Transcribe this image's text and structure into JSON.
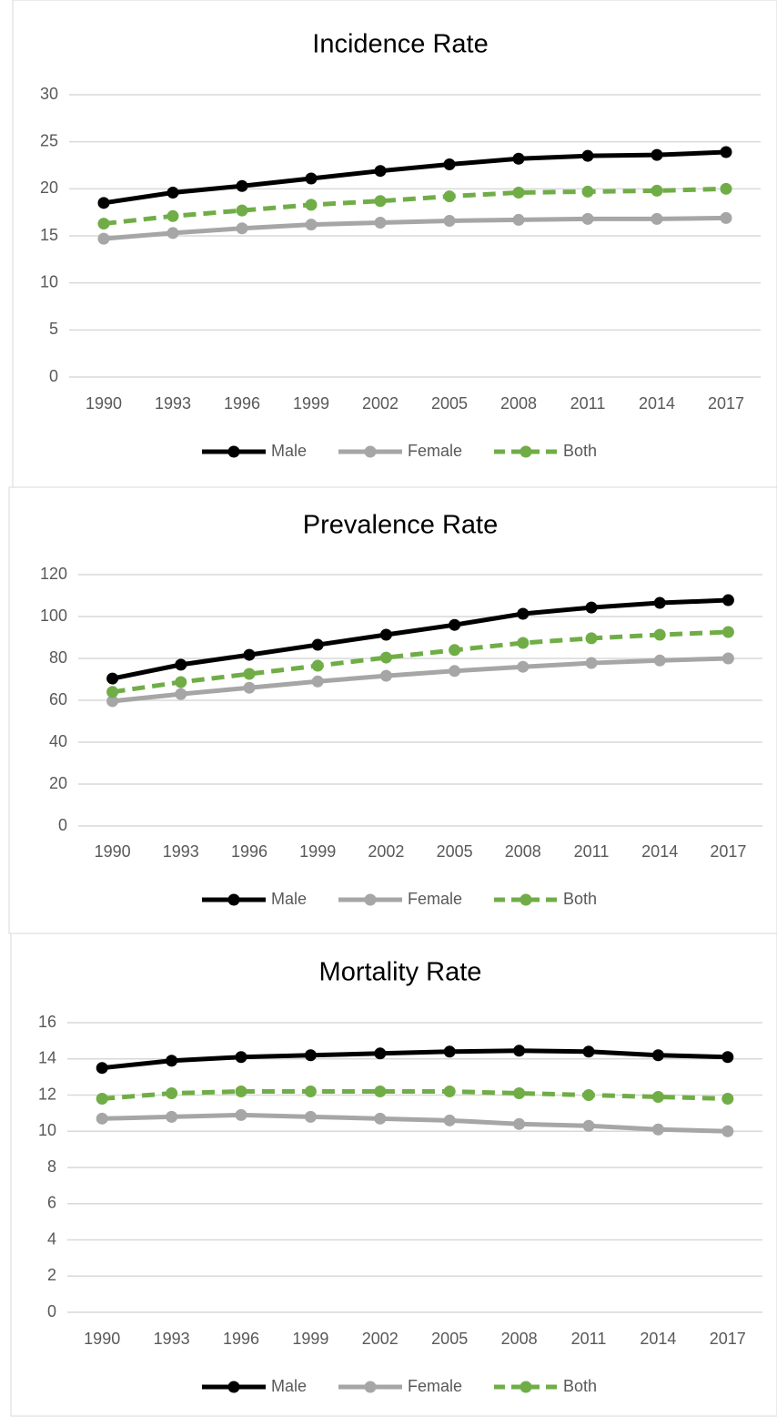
{
  "chart_data": [
    {
      "type": "line",
      "title": "Incidence Rate",
      "categories": [
        "1990",
        "1993",
        "1996",
        "1999",
        "2002",
        "2005",
        "2008",
        "2011",
        "2014",
        "2017"
      ],
      "series": [
        {
          "name": "Male",
          "color": "#000000",
          "line_style": "solid",
          "values": [
            18.5,
            19.6,
            20.3,
            21.1,
            21.9,
            22.6,
            23.2,
            23.5,
            23.6,
            23.9
          ]
        },
        {
          "name": "Female",
          "color": "#a6a6a6",
          "line_style": "solid",
          "values": [
            14.7,
            15.3,
            15.8,
            16.2,
            16.4,
            16.6,
            16.7,
            16.8,
            16.8,
            16.9
          ]
        },
        {
          "name": "Both",
          "color": "#70ad47",
          "line_style": "dashed",
          "values": [
            16.3,
            17.1,
            17.7,
            18.3,
            18.7,
            19.2,
            19.6,
            19.7,
            19.8,
            20.0
          ]
        }
      ],
      "ylim": [
        0,
        30
      ],
      "yticks": [
        0,
        5,
        10,
        15,
        20,
        25,
        30
      ],
      "grid": true,
      "legend": "bottom"
    },
    {
      "type": "line",
      "title": "Prevalence Rate",
      "categories": [
        "1990",
        "1993",
        "1996",
        "1999",
        "2002",
        "2005",
        "2008",
        "2011",
        "2014",
        "2017"
      ],
      "series": [
        {
          "name": "Male",
          "color": "#000000",
          "line_style": "solid",
          "values": [
            70.4,
            77,
            81.7,
            86.5,
            91.3,
            96,
            101.3,
            104.3,
            106.5,
            107.8
          ]
        },
        {
          "name": "Female",
          "color": "#a6a6a6",
          "line_style": "solid",
          "values": [
            59.6,
            63,
            66,
            69,
            71.7,
            74,
            76,
            77.8,
            79,
            80
          ]
        },
        {
          "name": "Both",
          "color": "#70ad47",
          "line_style": "dashed",
          "values": [
            64,
            68.7,
            72.6,
            76.5,
            80.4,
            84,
            87.4,
            89.6,
            91.3,
            92.6
          ]
        }
      ],
      "ylim": [
        0,
        120
      ],
      "yticks": [
        0,
        20,
        40,
        60,
        80,
        100,
        120
      ],
      "grid": true,
      "legend": "bottom"
    },
    {
      "type": "line",
      "title": "Mortality Rate",
      "categories": [
        "1990",
        "1993",
        "1996",
        "1999",
        "2002",
        "2005",
        "2008",
        "2011",
        "2014",
        "2017"
      ],
      "series": [
        {
          "name": "Male",
          "color": "#000000",
          "line_style": "solid",
          "values": [
            13.5,
            13.9,
            14.1,
            14.2,
            14.3,
            14.4,
            14.45,
            14.4,
            14.2,
            14.1
          ]
        },
        {
          "name": "Female",
          "color": "#a6a6a6",
          "line_style": "solid",
          "values": [
            10.7,
            10.8,
            10.9,
            10.8,
            10.7,
            10.6,
            10.4,
            10.3,
            10.1,
            10.0
          ]
        },
        {
          "name": "Both",
          "color": "#70ad47",
          "line_style": "dashed",
          "values": [
            11.8,
            12.1,
            12.2,
            12.2,
            12.2,
            12.2,
            12.1,
            12.0,
            11.9,
            11.8
          ]
        }
      ],
      "ylim": [
        0,
        16
      ],
      "yticks": [
        0,
        2,
        4,
        6,
        8,
        10,
        12,
        14,
        16
      ],
      "grid": true,
      "legend": "bottom"
    }
  ]
}
